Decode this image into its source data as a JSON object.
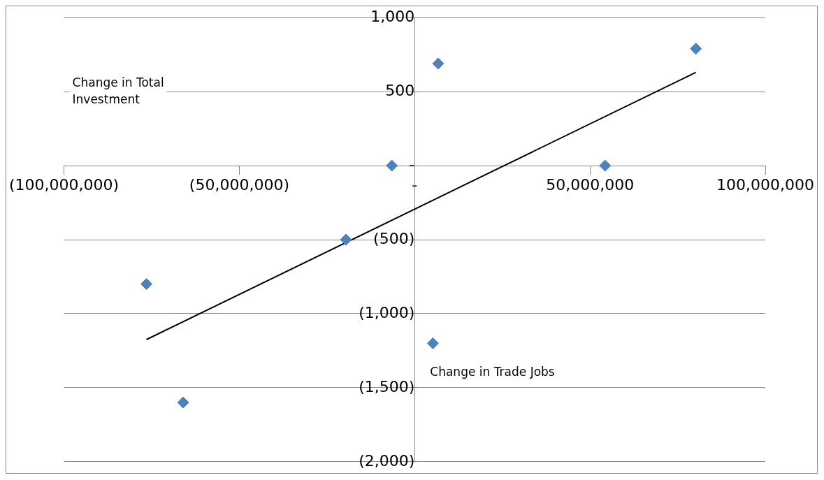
{
  "chart_data": {
    "type": "scatter",
    "xlabel": "Change in Trade Jobs",
    "ylabel": "Change in Total Investment",
    "series": [
      {
        "marker": "diamond",
        "color": "#4f81bd",
        "x": [
          80200000,
          6700000,
          -6500000,
          54300000,
          -19600000,
          -76500000,
          5200000,
          -66000000
        ],
        "values": [
          790,
          690,
          0,
          0,
          -500,
          -800,
          -1200,
          -1600
        ]
      },
      {
        "type": "line",
        "marker": "none",
        "color": "#000000",
        "x": [
          -76500000,
          80200000
        ],
        "values": [
          -1175,
          630
        ]
      }
    ],
    "xlim": [
      -100000000,
      100000000
    ],
    "xticks": [
      {
        "value": -100000000,
        "label": "(100,000,000)"
      },
      {
        "value": -50000000,
        "label": "(50,000,000)"
      },
      {
        "value": 0,
        "label": "-"
      },
      {
        "value": 50000000,
        "label": "50,000,000"
      },
      {
        "value": 100000000,
        "label": "100,000,000"
      }
    ],
    "ylim": [
      -2000,
      1000
    ],
    "yticks": [
      {
        "value": -2000,
        "label": "(2,000)"
      },
      {
        "value": -1500,
        "label": "(1,500)"
      },
      {
        "value": -1000,
        "label": "(1,000)"
      },
      {
        "value": -500,
        "label": "(500)"
      },
      {
        "value": 0,
        "label": "-"
      },
      {
        "value": 500,
        "label": "500"
      },
      {
        "value": 1000,
        "label": "1,000"
      }
    ],
    "grid": "y",
    "legend": false
  }
}
